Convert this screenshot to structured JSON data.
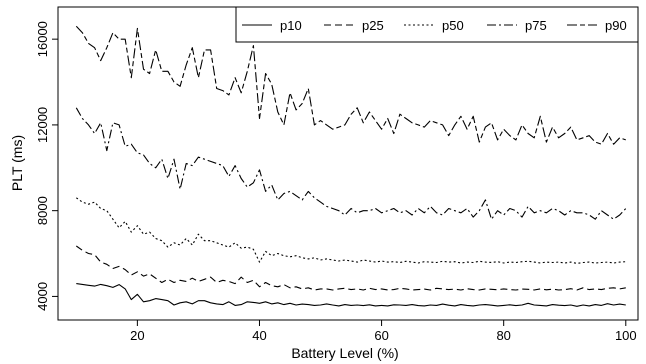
{
  "chart_data": {
    "type": "line",
    "xlabel": "Battery Level (%)",
    "ylabel": "PLT (ms)",
    "xlim": [
      7,
      102
    ],
    "ylim": [
      2900,
      17500
    ],
    "xticks": [
      20,
      40,
      60,
      80,
      100
    ],
    "yticks": [
      4000,
      8000,
      12000,
      16000
    ],
    "grid": false,
    "legend_position": "top-right",
    "x": [
      10,
      11,
      12,
      13,
      14,
      15,
      16,
      17,
      18,
      19,
      20,
      21,
      22,
      23,
      24,
      25,
      26,
      27,
      28,
      29,
      30,
      31,
      32,
      33,
      34,
      35,
      36,
      37,
      38,
      39,
      40,
      41,
      42,
      43,
      44,
      45,
      46,
      47,
      48,
      49,
      50,
      51,
      52,
      53,
      54,
      55,
      56,
      57,
      58,
      59,
      60,
      61,
      62,
      63,
      64,
      65,
      66,
      67,
      68,
      69,
      70,
      71,
      72,
      73,
      74,
      75,
      76,
      77,
      78,
      79,
      80,
      81,
      82,
      83,
      84,
      85,
      86,
      87,
      88,
      89,
      90,
      91,
      92,
      93,
      94,
      95,
      96,
      97,
      98,
      99,
      100
    ],
    "series": [
      {
        "name": "p10",
        "dash": "",
        "values": [
          4600,
          4560,
          4520,
          4480,
          4560,
          4500,
          4420,
          4550,
          4350,
          3850,
          4100,
          3750,
          3800,
          3900,
          3850,
          3800,
          3600,
          3700,
          3750,
          3650,
          3800,
          3800,
          3700,
          3650,
          3620,
          3750,
          3580,
          3620,
          3750,
          3720,
          3680,
          3750,
          3650,
          3700,
          3620,
          3680,
          3600,
          3640,
          3620,
          3580,
          3600,
          3650,
          3600,
          3560,
          3620,
          3580,
          3600,
          3570,
          3610,
          3560,
          3580,
          3560,
          3610,
          3600,
          3580,
          3620,
          3570,
          3560,
          3600,
          3580,
          3640,
          3590,
          3560,
          3620,
          3580,
          3560,
          3600,
          3620,
          3590,
          3560,
          3580,
          3610,
          3570,
          3600,
          3680,
          3600,
          3580,
          3560,
          3620,
          3590,
          3570,
          3600,
          3540,
          3600,
          3560,
          3620,
          3580,
          3660,
          3600,
          3640,
          3600
        ]
      },
      {
        "name": "p25",
        "dash": "7,4",
        "values": [
          6350,
          6150,
          6000,
          5950,
          5600,
          5500,
          5300,
          5400,
          5250,
          5000,
          5150,
          4950,
          5050,
          4850,
          4650,
          4800,
          4650,
          4750,
          4700,
          4850,
          4700,
          4800,
          4900,
          4650,
          4750,
          4700,
          4600,
          4900,
          4650,
          4750,
          4450,
          4650,
          4500,
          4450,
          4550,
          4400,
          4450,
          4350,
          4400,
          4300,
          4350,
          4350,
          4300,
          4350,
          4380,
          4320,
          4350,
          4300,
          4380,
          4320,
          4350,
          4300,
          4320,
          4380,
          4350,
          4300,
          4320,
          4340,
          4300,
          4380,
          4350,
          4320,
          4340,
          4300,
          4360,
          4320,
          4300,
          4350,
          4330,
          4310,
          4350,
          4320,
          4300,
          4340,
          4330,
          4300,
          4350,
          4310,
          4340,
          4300,
          4320,
          4360,
          4300,
          4400,
          4320,
          4350,
          4320,
          4380,
          4400,
          4350,
          4400
        ]
      },
      {
        "name": "p50",
        "dash": "2,2.5",
        "values": [
          8600,
          8400,
          8300,
          8400,
          8100,
          8000,
          7600,
          7200,
          7500,
          7000,
          7300,
          6900,
          7000,
          6700,
          6600,
          6300,
          6500,
          6400,
          6700,
          6400,
          6900,
          6600,
          6600,
          6500,
          6400,
          6300,
          6500,
          6250,
          6300,
          6200,
          5600,
          6100,
          5900,
          6000,
          5900,
          5850,
          5900,
          5800,
          5750,
          5800,
          5700,
          5750,
          5700,
          5650,
          5700,
          5650,
          5600,
          5700,
          5650,
          5600,
          5650,
          5600,
          5620,
          5580,
          5640,
          5600,
          5560,
          5620,
          5600,
          5580,
          5640,
          5600,
          5620,
          5560,
          5600,
          5580,
          5640,
          5600,
          5580,
          5620,
          5560,
          5600,
          5580,
          5620,
          5640,
          5600,
          5560,
          5600,
          5580,
          5600,
          5560,
          5600,
          5540,
          5580,
          5600,
          5560,
          5580,
          5600,
          5560,
          5600,
          5620
        ]
      },
      {
        "name": "p75",
        "dash": "9,3,2,3",
        "values": [
          12800,
          12300,
          12000,
          11600,
          12100,
          10800,
          12100,
          12000,
          11000,
          11100,
          10700,
          10600,
          10200,
          10000,
          10400,
          9500,
          10400,
          9000,
          10200,
          10100,
          10500,
          10400,
          10300,
          10200,
          10100,
          9600,
          10100,
          9500,
          9100,
          9300,
          9900,
          8900,
          9200,
          8500,
          8800,
          8900,
          8700,
          8500,
          8900,
          8600,
          8400,
          8200,
          8100,
          8000,
          7800,
          8100,
          7900,
          8000,
          8000,
          8100,
          7900,
          8000,
          8100,
          7900,
          8000,
          7800,
          8100,
          7900,
          8200,
          7900,
          7800,
          8100,
          8000,
          7900,
          8100,
          7700,
          8000,
          8500,
          7600,
          8000,
          7800,
          8100,
          8000,
          7700,
          8200,
          7900,
          8000,
          7900,
          8100,
          8000,
          7800,
          8000,
          7900,
          7900,
          7800,
          7600,
          8000,
          7800,
          7600,
          7800,
          8100
        ]
      },
      {
        "name": "p90",
        "dash": "10,3,5,3",
        "values": [
          16600,
          16300,
          15800,
          15600,
          15000,
          15600,
          16300,
          16000,
          16000,
          14200,
          16500,
          14600,
          14400,
          15500,
          14500,
          14500,
          14000,
          13800,
          14800,
          15600,
          14200,
          15500,
          15500,
          13700,
          13600,
          13400,
          14200,
          13500,
          14500,
          15700,
          12300,
          14400,
          13900,
          12600,
          12000,
          13500,
          12700,
          13000,
          13700,
          12000,
          12200,
          12000,
          11800,
          11900,
          12000,
          12500,
          12800,
          12100,
          12600,
          12200,
          11800,
          12300,
          11600,
          12500,
          12300,
          12100,
          12000,
          11900,
          12200,
          12100,
          12000,
          11500,
          12000,
          12400,
          11800,
          12400,
          11200,
          11900,
          12100,
          11300,
          11800,
          11500,
          11300,
          12000,
          11600,
          11400,
          12400,
          11200,
          11900,
          11400,
          11600,
          11900,
          11300,
          11400,
          11500,
          11200,
          11100,
          11600,
          11100,
          11400,
          11300
        ]
      }
    ]
  }
}
